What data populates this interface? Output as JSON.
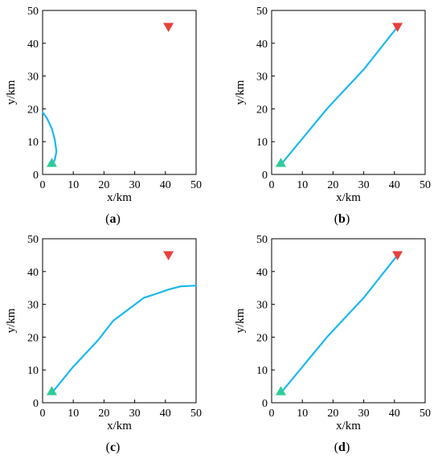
{
  "chart_data": [
    {
      "type": "line",
      "caption": "(a)",
      "caption_letter": "a",
      "xlabel": "x/km",
      "ylabel": "y/km",
      "xlim": [
        0,
        50
      ],
      "ylim": [
        0,
        50
      ],
      "xticks": [
        0,
        10,
        20,
        30,
        40,
        50
      ],
      "yticks": [
        0,
        10,
        20,
        30,
        40,
        50
      ],
      "grid": false,
      "series": [
        {
          "values": [
            [
              3,
              3
            ],
            [
              4,
              4.5
            ],
            [
              4.5,
              7
            ],
            [
              4,
              10.5
            ],
            [
              3,
              14
            ],
            [
              1.5,
              17
            ],
            [
              0,
              19
            ]
          ]
        }
      ],
      "markers": [
        {
          "shape": "triangle-up",
          "color": "#2ecc9a",
          "x": 3,
          "y": 3.5
        },
        {
          "shape": "triangle-down",
          "color": "#e8413c",
          "x": 41,
          "y": 45
        }
      ],
      "line_color": "#1ab8f0"
    },
    {
      "type": "line",
      "caption": "(b)",
      "caption_letter": "b",
      "xlabel": "x/km",
      "ylabel": "y/km",
      "xlim": [
        0,
        50
      ],
      "ylim": [
        0,
        50
      ],
      "xticks": [
        0,
        10,
        20,
        30,
        40,
        50
      ],
      "yticks": [
        0,
        10,
        20,
        30,
        40,
        50
      ],
      "grid": false,
      "series": [
        {
          "values": [
            [
              3,
              3
            ],
            [
              18,
              20
            ],
            [
              30,
              32
            ],
            [
              41,
              45
            ]
          ]
        }
      ],
      "markers": [
        {
          "shape": "triangle-up",
          "color": "#2ecc9a",
          "x": 3,
          "y": 3.5
        },
        {
          "shape": "triangle-down",
          "color": "#e8413c",
          "x": 41,
          "y": 45
        }
      ],
      "line_color": "#1ab8f0"
    },
    {
      "type": "line",
      "caption": "(c)",
      "caption_letter": "c",
      "xlabel": "x/km",
      "ylabel": "y/km",
      "xlim": [
        0,
        50
      ],
      "ylim": [
        0,
        50
      ],
      "xticks": [
        0,
        10,
        20,
        30,
        40,
        50
      ],
      "yticks": [
        0,
        10,
        20,
        30,
        40,
        50
      ],
      "grid": false,
      "series": [
        {
          "values": [
            [
              3,
              3
            ],
            [
              10,
              11
            ],
            [
              18,
              19
            ],
            [
              23,
              25
            ],
            [
              28,
              28.5
            ],
            [
              33,
              32
            ],
            [
              37,
              33.2
            ],
            [
              41,
              34.5
            ],
            [
              45,
              35.5
            ],
            [
              50,
              35.7
            ]
          ]
        }
      ],
      "markers": [
        {
          "shape": "triangle-up",
          "color": "#2ecc9a",
          "x": 3,
          "y": 3.5
        },
        {
          "shape": "triangle-down",
          "color": "#e8413c",
          "x": 41,
          "y": 45
        }
      ],
      "line_color": "#1ab8f0"
    },
    {
      "type": "line",
      "caption": "(d)",
      "caption_letter": "d",
      "xlabel": "x/km",
      "ylabel": "y/km",
      "xlim": [
        0,
        50
      ],
      "ylim": [
        0,
        50
      ],
      "xticks": [
        0,
        10,
        20,
        30,
        40,
        50
      ],
      "yticks": [
        0,
        10,
        20,
        30,
        40,
        50
      ],
      "grid": false,
      "series": [
        {
          "values": [
            [
              3,
              3
            ],
            [
              18,
              20
            ],
            [
              30,
              32
            ],
            [
              41,
              45
            ]
          ]
        }
      ],
      "markers": [
        {
          "shape": "triangle-up",
          "color": "#2ecc9a",
          "x": 3,
          "y": 3.5
        },
        {
          "shape": "triangle-down",
          "color": "#e8413c",
          "x": 41,
          "y": 45
        }
      ],
      "line_color": "#1ab8f0"
    }
  ]
}
